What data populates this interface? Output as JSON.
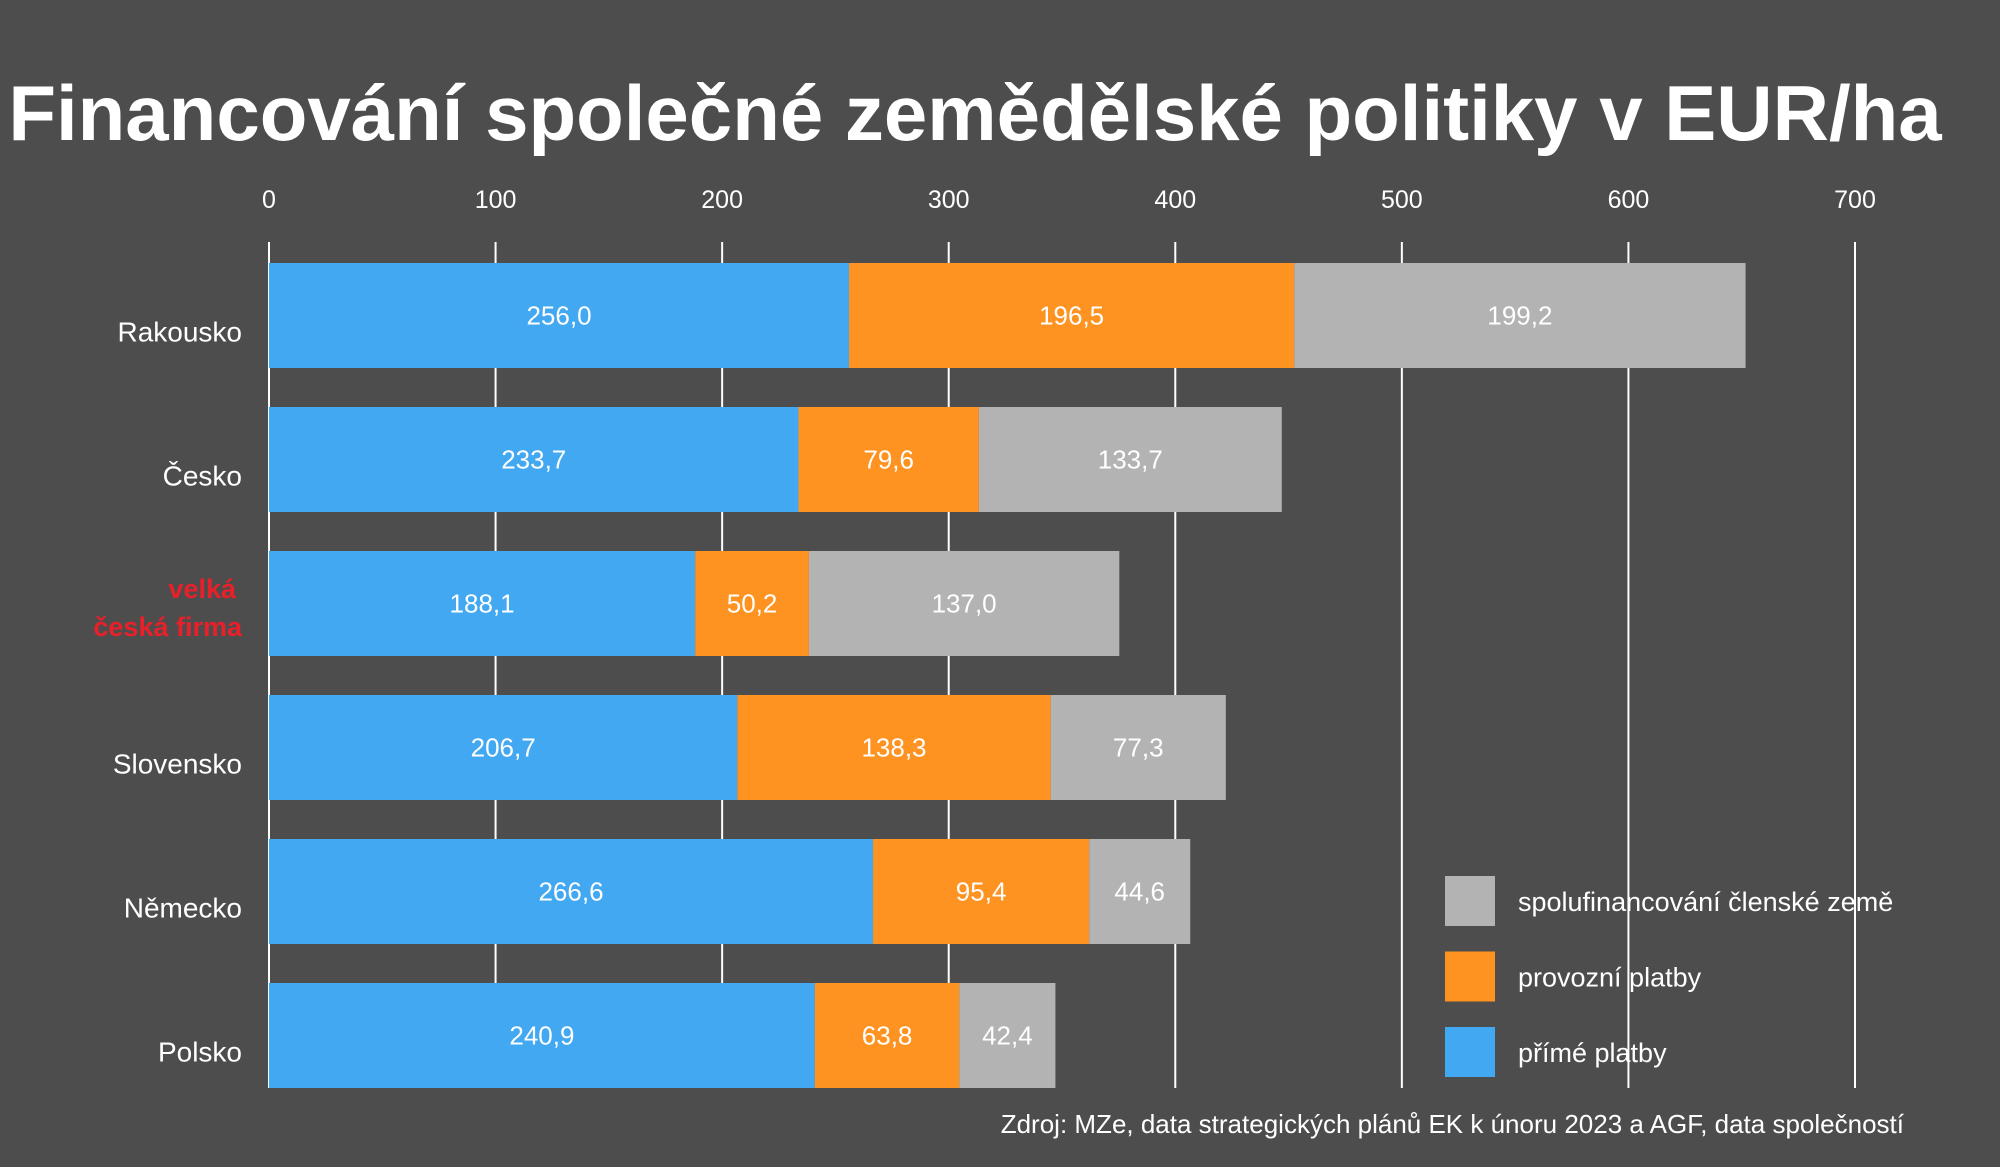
{
  "chart_data": {
    "type": "bar",
    "orientation": "horizontal",
    "stacked": true,
    "title": "Financování společné zemědělské politiky v EUR/ha",
    "xlim": [
      0,
      700
    ],
    "xticks": [
      "0",
      "100",
      "200",
      "300",
      "400",
      "500",
      "600",
      "700"
    ],
    "xtick_values": [
      0,
      100,
      200,
      300,
      400,
      500,
      600,
      700
    ],
    "xaxis_position": "top",
    "grid": true,
    "categories": [
      "Rakousko",
      "Česko",
      "velká česká firma",
      "Slovensko",
      "Německo",
      "Polsko"
    ],
    "category_lines": [
      [
        "Rakousko"
      ],
      [
        "Česko"
      ],
      [
        "velká",
        "česká firma"
      ],
      [
        "Slovensko"
      ],
      [
        "Německo"
      ],
      [
        "Polsko"
      ]
    ],
    "highlighted_category": "velká česká firma",
    "series": [
      {
        "name": "přímé platby",
        "color": "#42a8f2",
        "values": [
          256.0,
          233.7,
          188.1,
          206.7,
          266.6,
          240.9
        ],
        "labels": [
          "256,0",
          "233,7",
          "188,1",
          "206,7",
          "266,6",
          "240,9"
        ]
      },
      {
        "name": "provozní platby",
        "color": "#fe9321",
        "values": [
          196.5,
          79.6,
          50.2,
          138.3,
          95.4,
          63.8
        ],
        "labels": [
          "196,5",
          "79,6",
          "50,2",
          "138,3",
          "95,4",
          "63,8"
        ]
      },
      {
        "name": "spolufinancování členské země",
        "color": "#b3b3b3",
        "values": [
          199.2,
          133.7,
          137.0,
          77.3,
          44.6,
          42.4
        ],
        "labels": [
          "199,2",
          "133,7",
          "137,0",
          "77,3",
          "44,6",
          "42,4"
        ]
      }
    ],
    "legend_order": [
      2,
      1,
      0
    ],
    "legend_placement": "bottom-right",
    "source": "Zdroj: MZe, data strategických plánů EK k únoru 2023 a AGF, data společností",
    "colors": {
      "background": "#4d4d4d",
      "highlight": "#e8202a",
      "text": "#ffffff"
    }
  }
}
